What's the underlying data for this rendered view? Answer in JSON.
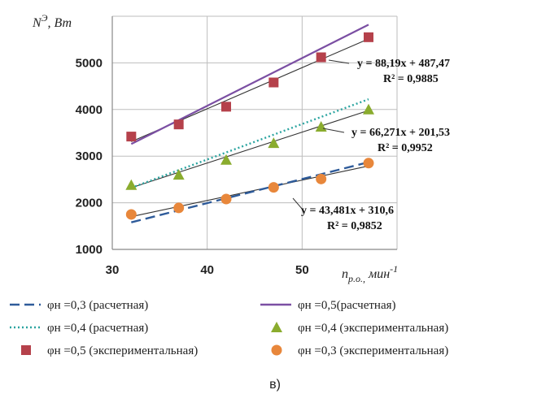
{
  "chart_data": {
    "type": "scatter",
    "xlabel": "n",
    "xlabel_sub": "р.о.,",
    "xlabel_unit": " мин",
    "xlabel_sup": "-1",
    "ylabel": "N",
    "ylabel_sup": "Э",
    "ylabel_unit": ", Вт",
    "xlim": [
      30,
      60
    ],
    "ylim": [
      1000,
      6000
    ],
    "xticks": [
      30,
      40,
      50
    ],
    "yticks": [
      1000,
      2000,
      3000,
      4000,
      5000
    ],
    "grid": true,
    "legend_position": "bottom",
    "caption": "в)",
    "colors": {
      "calc_03": "#2e5b9a",
      "calc_05": "#7b4fa3",
      "calc_04": "#2ba4a0",
      "exp_04": "#8aac2e",
      "exp_05": "#b5414b",
      "exp_03": "#e8873b",
      "trend": "#333333"
    },
    "series": [
      {
        "name": "φн =0,3 (расчетная)",
        "kind": "line",
        "style": "dashed",
        "color_key": "calc_03",
        "x": [
          32,
          57
        ],
        "y": [
          1580,
          2870
        ]
      },
      {
        "name": "φн =0,5(расчетная)",
        "kind": "line",
        "style": "solid",
        "color_key": "calc_05",
        "x": [
          32,
          57
        ],
        "y": [
          3260,
          5820
        ]
      },
      {
        "name": "φн =0,4 (расчетная)",
        "kind": "line",
        "style": "dotted",
        "color_key": "calc_04",
        "x": [
          32,
          57
        ],
        "y": [
          2320,
          4220
        ]
      },
      {
        "name": "φн =0,4 (экспериментальная)",
        "kind": "marker",
        "marker": "triangle",
        "color_key": "exp_04",
        "x": [
          32,
          37,
          42,
          47,
          52,
          57
        ],
        "y": [
          2380,
          2600,
          2920,
          3280,
          3630,
          4000
        ]
      },
      {
        "name": "φн =0,5 (экспериментальная)",
        "kind": "marker",
        "marker": "square",
        "color_key": "exp_05",
        "x": [
          32,
          37,
          42,
          47,
          52,
          57
        ],
        "y": [
          3420,
          3680,
          4060,
          4580,
          5120,
          5550
        ]
      },
      {
        "name": "φн =0,3 (экспериментальная)",
        "kind": "marker",
        "marker": "circle",
        "color_key": "exp_03",
        "x": [
          32,
          37,
          42,
          47,
          52,
          57
        ],
        "y": [
          1750,
          1890,
          2080,
          2330,
          2510,
          2850
        ]
      }
    ],
    "trendlines": [
      {
        "x": [
          32,
          57
        ],
        "y": [
          3310,
          5515
        ],
        "eq": "y = 88,19x + 487,47",
        "r2": "R² = 0,9885"
      },
      {
        "x": [
          32,
          57
        ],
        "y": [
          2322,
          3979
        ],
        "eq": "y = 66,271x + 201,53",
        "r2": "R² = 0,9952"
      },
      {
        "x": [
          32,
          57
        ],
        "y": [
          1702,
          2789
        ],
        "eq": "y = 43,481x + 310,6",
        "r2": "R² = 0,9852"
      }
    ]
  }
}
